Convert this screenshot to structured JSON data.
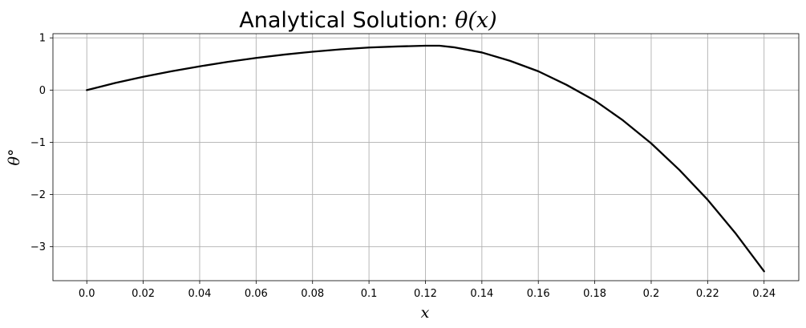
{
  "chart_data": {
    "type": "line",
    "title_prefix": "Analytical Solution: ",
    "title_math": "θ(x)",
    "xlabel": "x",
    "ylabel": "θ°",
    "xlim": [
      -0.012,
      0.2523
    ],
    "ylim": [
      -3.65,
      1.08
    ],
    "xticks": [
      0.0,
      0.02,
      0.04,
      0.06,
      0.08,
      0.1,
      0.12,
      0.14,
      0.16,
      0.18,
      0.2,
      0.22,
      0.24
    ],
    "xtick_labels": [
      "0.0",
      "0.02",
      "0.04",
      "0.06",
      "0.08",
      "0.1",
      "0.12",
      "0.14",
      "0.16",
      "0.18",
      "0.2",
      "0.22",
      "0.24"
    ],
    "yticks": [
      1,
      0,
      -1,
      -2,
      -3
    ],
    "ytick_labels": [
      "1",
      "0",
      "−1",
      "−2",
      "−3"
    ],
    "grid": true,
    "line_color": "#000000",
    "grid_color": "#b0b0b0",
    "series": [
      {
        "x": [
          0.0,
          0.01,
          0.02,
          0.03,
          0.04,
          0.05,
          0.06,
          0.07,
          0.08,
          0.09,
          0.1,
          0.11,
          0.12,
          0.125,
          0.13,
          0.14,
          0.15,
          0.16,
          0.17,
          0.18,
          0.19,
          0.2,
          0.21,
          0.22,
          0.23,
          0.24
        ],
        "y": [
          0.0,
          0.135,
          0.255,
          0.36,
          0.455,
          0.54,
          0.615,
          0.68,
          0.735,
          0.78,
          0.815,
          0.835,
          0.85,
          0.85,
          0.82,
          0.72,
          0.56,
          0.36,
          0.1,
          -0.2,
          -0.58,
          -1.02,
          -1.53,
          -2.1,
          -2.75,
          -3.47
        ]
      }
    ]
  }
}
